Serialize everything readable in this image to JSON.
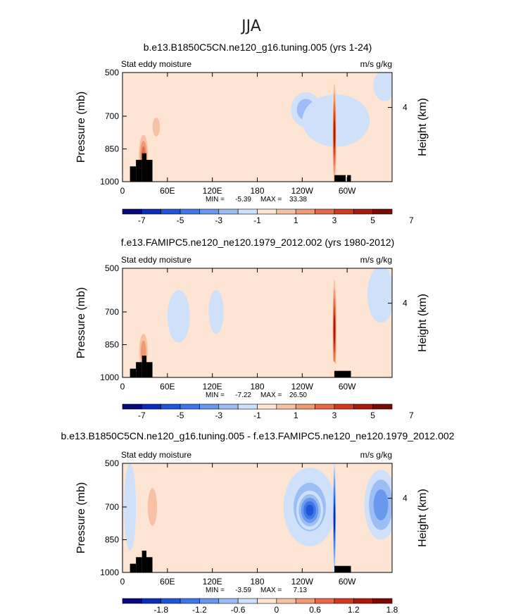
{
  "page_title": "JJA",
  "colors": {
    "cool": [
      "#08087a",
      "#0a2db8",
      "#1f55d8",
      "#3f78e6",
      "#6a98ee",
      "#9dbdf5",
      "#cfe0fb"
    ],
    "warm": [
      "#fde4d3",
      "#f7c2a4",
      "#f09a73",
      "#e56b48",
      "#d23a1f",
      "#a81b0c",
      "#7a0a05"
    ],
    "terrain": "#000000",
    "near_zero_pos": "#fde4d3",
    "near_zero_neg": "#cfe0fb"
  },
  "chart_data": [
    {
      "type": "contour",
      "title": "b.e13.B1850C5CN.ne120_g16.tuning.005 (yrs 1-24)",
      "left_label": "Stat eddy moisture",
      "right_label": "m/s g/kg",
      "ylabel": "Pressure (mb)",
      "ylabel_right": "Height (km)",
      "yticks": [
        "500",
        "700",
        "850",
        "1000"
      ],
      "ytick_values": [
        500,
        700,
        850,
        1000
      ],
      "height_ticks": [
        "4"
      ],
      "xticks": [
        "0",
        "60E",
        "120E",
        "180",
        "120W",
        "60W"
      ],
      "xtick_values": [
        0,
        60,
        120,
        180,
        240,
        300
      ],
      "xlim": [
        0,
        360
      ],
      "ylim": [
        500,
        1000
      ],
      "stats": {
        "min_label": "MIN =",
        "min": "-5.39",
        "max_label": "MAX =",
        "max": "33.38"
      },
      "colorbar_labels": [
        "-7",
        "-5",
        "-3",
        "-1",
        "1",
        "3",
        "5",
        "7"
      ],
      "contour_levels": [
        -8,
        -7,
        -6,
        -5,
        -4,
        -3,
        -2,
        -1,
        0,
        1,
        2,
        3,
        4,
        5,
        6,
        7,
        8
      ],
      "background_sign": 1,
      "features": [
        {
          "name": "negative-pool-central-pacific",
          "lon": 245,
          "p": 670,
          "dlon": 20,
          "dp": 80,
          "level": -2
        },
        {
          "name": "negative-band-east-pacific",
          "lon": 285,
          "p": 720,
          "dlon": 45,
          "dp": 120,
          "level": -1
        },
        {
          "name": "negative-patch-atlantic-upper",
          "lon": 350,
          "p": 560,
          "dlon": 15,
          "dp": 70,
          "level": -1
        },
        {
          "name": "positive-column-africa",
          "lon": 28,
          "p": 880,
          "dlon": 8,
          "dp": 120,
          "level": 4
        },
        {
          "name": "positive-ridge-andes",
          "lon": 283,
          "p": 780,
          "dlon": 3,
          "dp": 270,
          "level": 6
        },
        {
          "name": "positive-patch-asia",
          "lon": 45,
          "p": 750,
          "dlon": 8,
          "dp": 70,
          "level": 2
        }
      ],
      "terrain_regions": [
        [
          10,
          18,
          930
        ],
        [
          18,
          26,
          900
        ],
        [
          26,
          32,
          870
        ],
        [
          32,
          40,
          900
        ],
        [
          283,
          298,
          970
        ],
        [
          300,
          305,
          970
        ]
      ]
    },
    {
      "type": "contour",
      "title": "f.e13.FAMIPC5.ne120_ne120.1979_2012.002 (yrs 1980-2012)",
      "left_label": "Stat eddy moisture",
      "right_label": "m/s g/kg",
      "ylabel": "Pressure (mb)",
      "ylabel_right": "Height (km)",
      "yticks": [
        "500",
        "700",
        "850",
        "1000"
      ],
      "ytick_values": [
        500,
        700,
        850,
        1000
      ],
      "height_ticks": [
        "4"
      ],
      "xticks": [
        "0",
        "60E",
        "120E",
        "180",
        "120W",
        "60W"
      ],
      "xtick_values": [
        0,
        60,
        120,
        180,
        240,
        300
      ],
      "xlim": [
        0,
        360
      ],
      "ylim": [
        500,
        1000
      ],
      "stats": {
        "min_label": "MIN =",
        "min": "-7.22",
        "max_label": "MAX =",
        "max": "26.50"
      },
      "colorbar_labels": [
        "-7",
        "-5",
        "-3",
        "-1",
        "1",
        "3",
        "5",
        "7"
      ],
      "contour_levels": [
        -8,
        -7,
        -6,
        -5,
        -4,
        -3,
        -2,
        -1,
        0,
        1,
        2,
        3,
        4,
        5,
        6,
        7,
        8
      ],
      "background_sign": 1,
      "features": [
        {
          "name": "negative-patch-atlantic",
          "lon": 345,
          "p": 620,
          "dlon": 18,
          "dp": 130,
          "level": -1
        },
        {
          "name": "negative-patch-indian",
          "lon": 75,
          "p": 720,
          "dlon": 15,
          "dp": 120,
          "level": -1
        },
        {
          "name": "negative-patch-pacific",
          "lon": 125,
          "p": 700,
          "dlon": 10,
          "dp": 100,
          "level": -1
        },
        {
          "name": "positive-column-africa",
          "lon": 28,
          "p": 880,
          "dlon": 8,
          "dp": 110,
          "level": 3
        },
        {
          "name": "positive-ridge-andes",
          "lon": 283,
          "p": 780,
          "dlon": 3,
          "dp": 270,
          "level": 6
        },
        {
          "name": "positive-patch-andes-low",
          "lon": 270,
          "p": 950,
          "dlon": 15,
          "dp": 40,
          "level": 1
        }
      ],
      "terrain_regions": [
        [
          10,
          18,
          960
        ],
        [
          18,
          26,
          930
        ],
        [
          26,
          32,
          900
        ],
        [
          32,
          40,
          930
        ],
        [
          283,
          305,
          970
        ]
      ]
    },
    {
      "type": "contour",
      "title": "b.e13.B1850C5CN.ne120_g16.tuning.005 - f.e13.FAMIPC5.ne120_ne120.1979_2012.002",
      "left_label": "Stat eddy moisture",
      "right_label": "m/s g/kg",
      "ylabel": "Pressure (mb)",
      "ylabel_right": "Height (km)",
      "yticks": [
        "500",
        "700",
        "850",
        "1000"
      ],
      "ytick_values": [
        500,
        700,
        850,
        1000
      ],
      "height_ticks": [
        "4"
      ],
      "xticks": [
        "0",
        "60E",
        "120E",
        "180",
        "120W",
        "60W"
      ],
      "xtick_values": [
        0,
        60,
        120,
        180,
        240,
        300
      ],
      "xlim": [
        0,
        360
      ],
      "ylim": [
        500,
        1000
      ],
      "stats": {
        "min_label": "MIN =",
        "min": "-3.59",
        "max_label": "MAX =",
        "max": "7.13"
      },
      "colorbar_labels": [
        "-1.8",
        "-1.2",
        "-0.6",
        "0",
        "0.6",
        "1.2",
        "1.8"
      ],
      "contour_levels": [
        -2.4,
        -2.1,
        -1.8,
        -1.5,
        -1.2,
        -0.9,
        -0.6,
        -0.3,
        0,
        0.3,
        0.6,
        0.9,
        1.2,
        1.5,
        1.8,
        2.1,
        2.4
      ],
      "background_sign": 1,
      "features": [
        {
          "name": "negative-pool-central-pacific-outer",
          "lon": 250,
          "p": 700,
          "dlon": 35,
          "dp": 180,
          "level": -2
        },
        {
          "name": "negative-pool-central-pacific-core",
          "lon": 250,
          "p": 715,
          "dlon": 18,
          "dp": 90,
          "level": -5
        },
        {
          "name": "negative-pool-atlantic",
          "lon": 345,
          "p": 690,
          "dlon": 22,
          "dp": 160,
          "level": -3
        },
        {
          "name": "negative-band-indian",
          "lon": 10,
          "p": 700,
          "dlon": 8,
          "dp": 200,
          "level": -1
        },
        {
          "name": "positive-column-africa",
          "lon": 40,
          "p": 700,
          "dlon": 10,
          "dp": 140,
          "level": 2
        },
        {
          "name": "negative-ridge-andes",
          "lon": 283,
          "p": 750,
          "dlon": 2,
          "dp": 270,
          "level": -6
        },
        {
          "name": "positive-band-east-pacific",
          "lon": 310,
          "p": 820,
          "dlon": 18,
          "dp": 80,
          "level": 1
        }
      ],
      "terrain_regions": [
        [
          10,
          18,
          960
        ],
        [
          18,
          26,
          930
        ],
        [
          26,
          32,
          900
        ],
        [
          32,
          40,
          930
        ],
        [
          283,
          305,
          970
        ]
      ]
    }
  ]
}
